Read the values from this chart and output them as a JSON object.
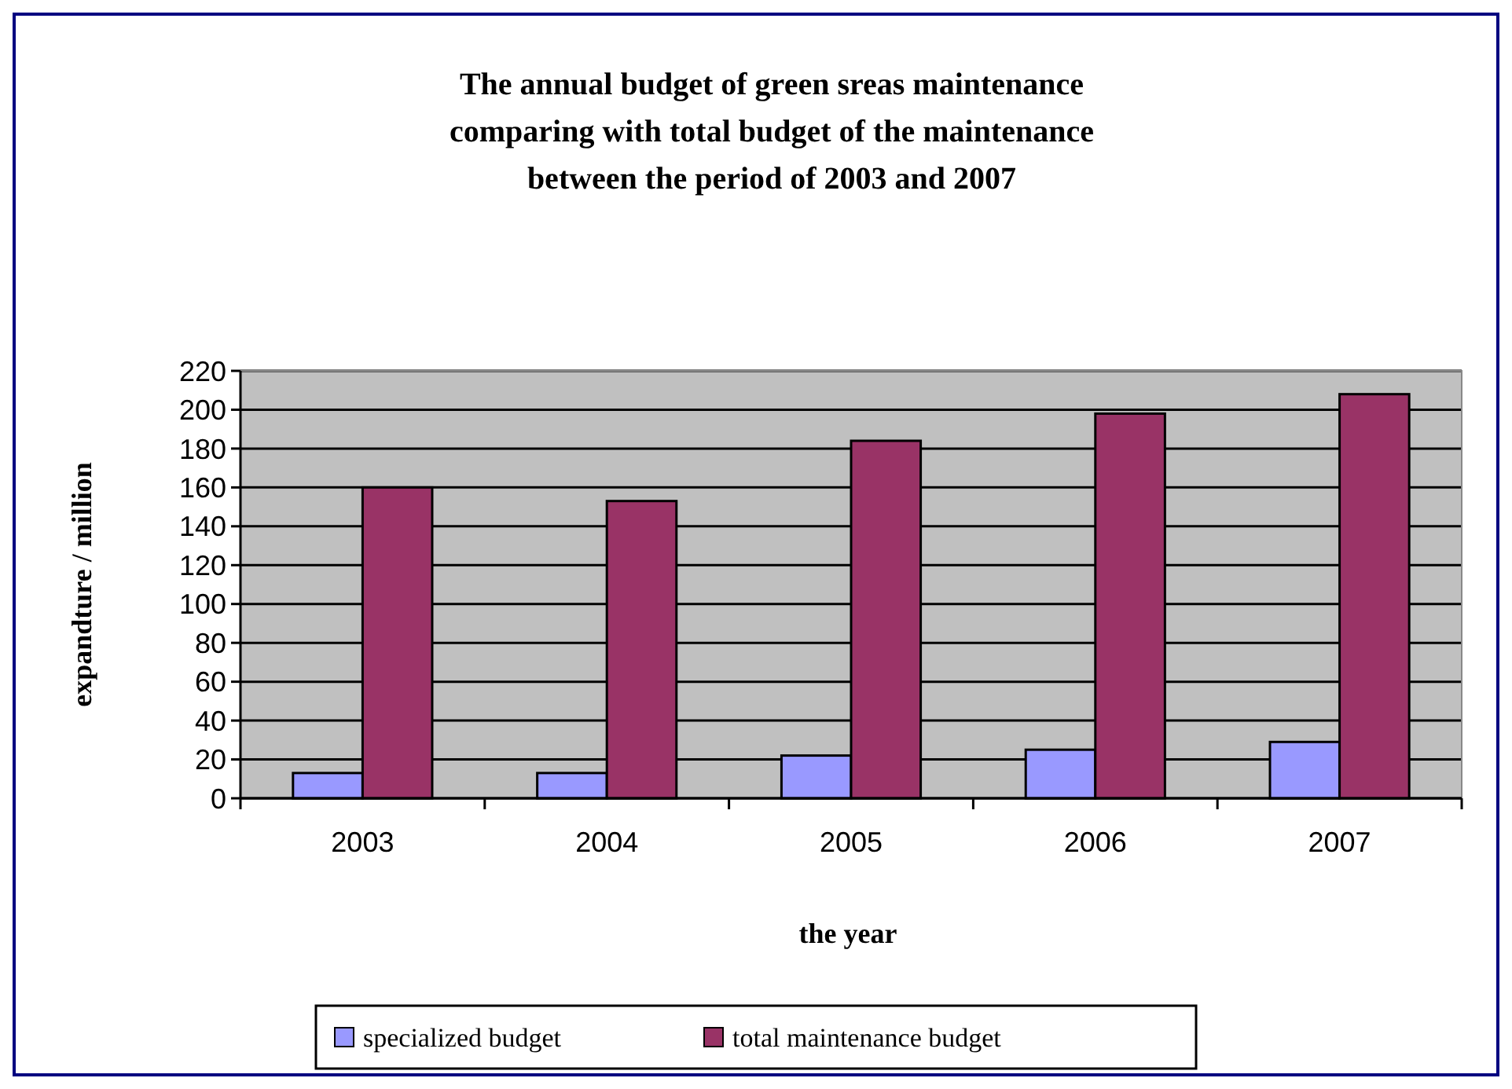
{
  "chart_data": {
    "type": "bar",
    "title": "The annual budget of green sreas maintenance\ncomparing with total budget of the maintenance\nbetween the period of 2003 and 2007",
    "xlabel": "the year",
    "ylabel": "expandture / million",
    "categories": [
      "2003",
      "2004",
      "2005",
      "2006",
      "2007"
    ],
    "series": [
      {
        "name": "specialized budget",
        "color": "#9999ff",
        "values": [
          13,
          13,
          22,
          25,
          29
        ]
      },
      {
        "name": "total maintenance budget",
        "color": "#993366",
        "values": [
          160,
          153,
          184,
          198,
          208
        ]
      }
    ],
    "ylim": [
      0,
      220
    ],
    "yticks": [
      0,
      20,
      40,
      60,
      80,
      100,
      120,
      140,
      160,
      180,
      200,
      220
    ],
    "grid": "y",
    "legend": "bottom"
  }
}
